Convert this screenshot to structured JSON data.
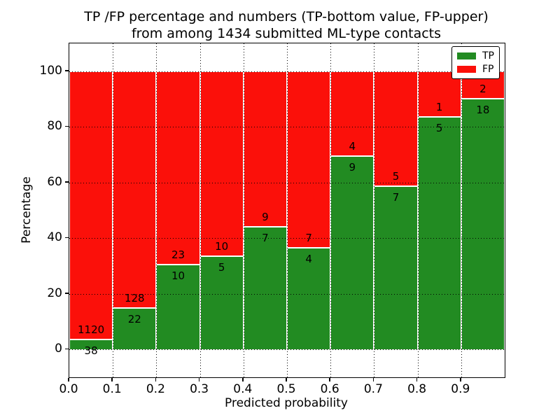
{
  "figure": {
    "title_line1": "TP /FP percentage and numbers (TP-bottom value, FP-upper)",
    "title_line2": "from among 1434 submitted ML-type contacts",
    "background": "#ffffff"
  },
  "chart_data": {
    "type": "bar",
    "stacked": true,
    "title": "TP /FP percentage and numbers (TP-bottom value, FP-upper) from among 1434 submitted ML-type contacts",
    "total_contacts": 1434,
    "bin_starts": [
      0.0,
      0.1,
      0.2,
      0.3,
      0.4,
      0.5,
      0.6,
      0.7,
      0.8,
      0.9
    ],
    "bin_width": 0.1,
    "series": [
      {
        "name": "TP",
        "color": "#228b22",
        "counts": [
          38,
          22,
          10,
          5,
          7,
          4,
          9,
          7,
          5,
          18
        ]
      },
      {
        "name": "FP",
        "color": "#fb100a",
        "counts": [
          1120,
          128,
          23,
          10,
          9,
          7,
          4,
          5,
          1,
          2
        ]
      }
    ],
    "tp_percent": [
      3.3,
      14.7,
      30.3,
      33.3,
      43.8,
      36.4,
      69.2,
      58.3,
      83.3,
      90.0
    ],
    "fp_percent": [
      96.7,
      85.3,
      69.7,
      66.7,
      56.3,
      63.6,
      30.8,
      41.7,
      16.7,
      10.0
    ],
    "note": "each bar stacks to 100%; numeric labels at segment boundary show FP count (upper) and TP count (bottom)",
    "xlabel": "Predicted probability",
    "ylabel": "Percentage",
    "x_tick_labels": [
      "0.0",
      "0.1",
      "0.2",
      "0.3",
      "0.4",
      "0.5",
      "0.6",
      "0.7",
      "0.8",
      "0.9"
    ],
    "y_ticks": [
      0,
      20,
      40,
      60,
      80,
      100
    ],
    "xlim": [
      0.0,
      1.0
    ],
    "ylim": [
      -10,
      110
    ],
    "grid": {
      "style": "dotted",
      "color": "#000000",
      "on": true
    },
    "legend": {
      "position": "upper-right",
      "entries": [
        {
          "label": "TP",
          "color": "#228b22"
        },
        {
          "label": "FP",
          "color": "#fb100a"
        }
      ]
    }
  },
  "colors": {
    "tp_green": "#228b22",
    "fp_red": "#fb100a",
    "bar_edge": "#ffffff",
    "axis": "#000000"
  }
}
